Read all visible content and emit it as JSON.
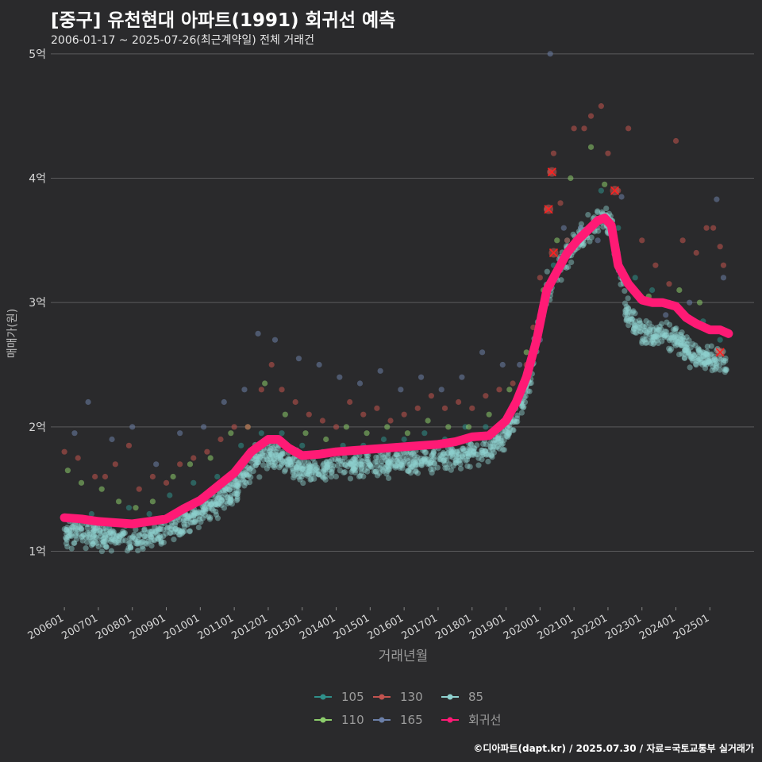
{
  "header": {
    "title": "[중구] 유천현대 아파트(1991) 회귀선 예측",
    "subtitle": "2006-01-17 ~ 2025-07-26(최근계약일) 전체 거래건"
  },
  "footer": {
    "credit": "©디아파트(dapt.kr) / 2025.07.30 / 자료=국토교통부 실거래가"
  },
  "colors": {
    "background": "#2a2a2c",
    "grid": "#5a5a5c",
    "s105": "#2f8f8a",
    "s110": "#8ccc6c",
    "s130": "#c2534f",
    "s165": "#6b7fa8",
    "s85": "#8fd1cf",
    "regression": "#ff1a75"
  },
  "chart_data": {
    "type": "scatter",
    "title": "[중구] 유천현대 아파트(1991) 회귀선 예측",
    "subtitle": "2006-01-17 ~ 2025-07-26(최근계약일) 전체 거래건",
    "xlabel": "거래년월",
    "ylabel": "매매가(원)",
    "x_unit": "year (decimal)",
    "y_unit": "억",
    "xlim": [
      2005.6,
      2026.3
    ],
    "ylim": [
      0.55,
      5.05
    ],
    "grid": true,
    "legend_position": "bottom",
    "x_ticks": [
      {
        "value": 2006.0,
        "label": "200601"
      },
      {
        "value": 2007.0,
        "label": "200701"
      },
      {
        "value": 2008.0,
        "label": "200801"
      },
      {
        "value": 2009.0,
        "label": "200901"
      },
      {
        "value": 2010.0,
        "label": "201001"
      },
      {
        "value": 2011.0,
        "label": "201101"
      },
      {
        "value": 2012.0,
        "label": "201201"
      },
      {
        "value": 2013.0,
        "label": "201301"
      },
      {
        "value": 2014.0,
        "label": "201401"
      },
      {
        "value": 2015.0,
        "label": "201501"
      },
      {
        "value": 2016.0,
        "label": "201601"
      },
      {
        "value": 2017.0,
        "label": "201701"
      },
      {
        "value": 2018.0,
        "label": "201801"
      },
      {
        "value": 2019.0,
        "label": "201901"
      },
      {
        "value": 2020.0,
        "label": "202001"
      },
      {
        "value": 2021.0,
        "label": "202101"
      },
      {
        "value": 2022.0,
        "label": "202201"
      },
      {
        "value": 2023.0,
        "label": "202301"
      },
      {
        "value": 2024.0,
        "label": "202401"
      },
      {
        "value": 2025.0,
        "label": "202501"
      }
    ],
    "y_ticks": [
      {
        "value": 1,
        "label": "1억"
      },
      {
        "value": 2,
        "label": "2억"
      },
      {
        "value": 3,
        "label": "3억"
      },
      {
        "value": 4,
        "label": "4억"
      },
      {
        "value": 5,
        "label": "5억"
      }
    ],
    "series": [
      {
        "name": "105",
        "kind": "scatter",
        "color": "#2f8f8a",
        "points": [
          [
            2006.2,
            1.25
          ],
          [
            2006.8,
            1.3
          ],
          [
            2007.3,
            1.2
          ],
          [
            2007.9,
            1.35
          ],
          [
            2008.5,
            1.3
          ],
          [
            2009.1,
            1.45
          ],
          [
            2009.8,
            1.55
          ],
          [
            2010.5,
            1.6
          ],
          [
            2011.2,
            1.85
          ],
          [
            2011.8,
            1.95
          ],
          [
            2012.4,
            1.95
          ],
          [
            2013.0,
            1.85
          ],
          [
            2013.6,
            1.8
          ],
          [
            2014.2,
            1.85
          ],
          [
            2014.8,
            1.85
          ],
          [
            2015.4,
            1.9
          ],
          [
            2016.0,
            1.9
          ],
          [
            2016.6,
            1.95
          ],
          [
            2017.2,
            1.9
          ],
          [
            2017.8,
            2.0
          ],
          [
            2018.4,
            2.0
          ],
          [
            2019.0,
            2.05
          ],
          [
            2019.5,
            2.3
          ],
          [
            2020.0,
            2.9
          ],
          [
            2020.4,
            3.3
          ],
          [
            2020.8,
            3.5
          ],
          [
            2021.3,
            3.55
          ],
          [
            2021.8,
            3.9
          ],
          [
            2022.3,
            3.6
          ],
          [
            2022.8,
            3.2
          ],
          [
            2023.3,
            3.1
          ],
          [
            2023.8,
            3.0
          ],
          [
            2024.3,
            2.9
          ],
          [
            2024.8,
            2.85
          ],
          [
            2025.3,
            2.7
          ]
        ]
      },
      {
        "name": "110",
        "kind": "scatter",
        "color": "#8ccc6c",
        "points": [
          [
            2006.1,
            1.65
          ],
          [
            2006.5,
            1.55
          ],
          [
            2007.1,
            1.5
          ],
          [
            2007.6,
            1.4
          ],
          [
            2008.1,
            1.35
          ],
          [
            2008.6,
            1.4
          ],
          [
            2009.2,
            1.6
          ],
          [
            2009.7,
            1.7
          ],
          [
            2010.3,
            1.75
          ],
          [
            2010.9,
            1.95
          ],
          [
            2011.4,
            2.0
          ],
          [
            2011.9,
            2.35
          ],
          [
            2012.5,
            2.1
          ],
          [
            2013.1,
            1.95
          ],
          [
            2013.7,
            1.9
          ],
          [
            2014.3,
            2.0
          ],
          [
            2014.9,
            1.95
          ],
          [
            2015.5,
            2.0
          ],
          [
            2016.1,
            1.95
          ],
          [
            2016.7,
            2.05
          ],
          [
            2017.3,
            2.0
          ],
          [
            2017.9,
            2.0
          ],
          [
            2018.5,
            2.1
          ],
          [
            2019.1,
            2.3
          ],
          [
            2019.6,
            2.6
          ],
          [
            2020.1,
            3.1
          ],
          [
            2020.5,
            3.5
          ],
          [
            2020.9,
            4.0
          ],
          [
            2021.5,
            4.25
          ],
          [
            2021.9,
            3.95
          ],
          [
            2023.2,
            3.05
          ],
          [
            2024.1,
            3.1
          ],
          [
            2024.7,
            3.0
          ]
        ]
      },
      {
        "name": "130",
        "kind": "scatter",
        "color": "#c2534f",
        "points": [
          [
            2006.0,
            1.8
          ],
          [
            2006.4,
            1.75
          ],
          [
            2006.9,
            1.6
          ],
          [
            2007.2,
            1.6
          ],
          [
            2007.5,
            1.7
          ],
          [
            2007.9,
            1.85
          ],
          [
            2008.2,
            1.5
          ],
          [
            2008.6,
            1.6
          ],
          [
            2009.0,
            1.55
          ],
          [
            2009.4,
            1.7
          ],
          [
            2009.8,
            1.75
          ],
          [
            2010.2,
            1.8
          ],
          [
            2010.6,
            1.9
          ],
          [
            2011.0,
            2.0
          ],
          [
            2011.4,
            2.0
          ],
          [
            2011.8,
            2.3
          ],
          [
            2012.1,
            2.5
          ],
          [
            2012.4,
            2.3
          ],
          [
            2012.8,
            2.2
          ],
          [
            2013.2,
            2.1
          ],
          [
            2013.6,
            2.05
          ],
          [
            2014.0,
            2.0
          ],
          [
            2014.4,
            2.2
          ],
          [
            2014.8,
            2.1
          ],
          [
            2015.2,
            2.15
          ],
          [
            2015.6,
            2.05
          ],
          [
            2016.0,
            2.1
          ],
          [
            2016.4,
            2.15
          ],
          [
            2016.8,
            2.25
          ],
          [
            2017.2,
            2.15
          ],
          [
            2017.6,
            2.2
          ],
          [
            2018.0,
            2.15
          ],
          [
            2018.4,
            2.25
          ],
          [
            2018.8,
            2.3
          ],
          [
            2019.2,
            2.35
          ],
          [
            2019.6,
            2.5
          ],
          [
            2019.8,
            2.8
          ],
          [
            2020.0,
            3.2
          ],
          [
            2020.2,
            3.75
          ],
          [
            2020.3,
            4.05
          ],
          [
            2020.4,
            4.2
          ],
          [
            2020.6,
            3.8
          ],
          [
            2020.8,
            3.5
          ],
          [
            2021.0,
            4.4
          ],
          [
            2021.3,
            4.4
          ],
          [
            2021.5,
            4.5
          ],
          [
            2021.8,
            4.58
          ],
          [
            2022.0,
            4.2
          ],
          [
            2022.3,
            3.9
          ],
          [
            2022.6,
            4.4
          ],
          [
            2023.0,
            3.5
          ],
          [
            2023.4,
            3.3
          ],
          [
            2023.8,
            3.15
          ],
          [
            2024.0,
            4.3
          ],
          [
            2024.2,
            3.5
          ],
          [
            2024.6,
            3.4
          ],
          [
            2024.9,
            3.6
          ],
          [
            2025.1,
            3.6
          ],
          [
            2025.3,
            3.45
          ],
          [
            2025.4,
            3.3
          ]
        ]
      },
      {
        "name": "165",
        "kind": "scatter",
        "color": "#6b7fa8",
        "points": [
          [
            2006.3,
            1.95
          ],
          [
            2006.7,
            2.2
          ],
          [
            2007.4,
            1.9
          ],
          [
            2008.0,
            2.0
          ],
          [
            2008.7,
            1.7
          ],
          [
            2009.4,
            1.95
          ],
          [
            2010.1,
            2.0
          ],
          [
            2010.7,
            2.2
          ],
          [
            2011.3,
            2.3
          ],
          [
            2011.7,
            2.75
          ],
          [
            2012.2,
            2.7
          ],
          [
            2012.9,
            2.55
          ],
          [
            2013.5,
            2.5
          ],
          [
            2014.1,
            2.4
          ],
          [
            2014.7,
            2.35
          ],
          [
            2015.3,
            2.45
          ],
          [
            2015.9,
            2.3
          ],
          [
            2016.5,
            2.4
          ],
          [
            2017.1,
            2.3
          ],
          [
            2017.7,
            2.4
          ],
          [
            2018.3,
            2.6
          ],
          [
            2018.9,
            2.5
          ],
          [
            2019.4,
            2.5
          ],
          [
            2020.0,
            2.7
          ],
          [
            2020.3,
            5.0
          ],
          [
            2020.7,
            3.6
          ],
          [
            2021.2,
            3.6
          ],
          [
            2021.7,
            3.5
          ],
          [
            2022.4,
            3.85
          ],
          [
            2023.1,
            3.0
          ],
          [
            2023.7,
            2.9
          ],
          [
            2024.4,
            3.0
          ],
          [
            2025.2,
            3.83
          ],
          [
            2025.4,
            3.2
          ]
        ]
      },
      {
        "name": "85",
        "kind": "scatter",
        "color": "#8fd1cf",
        "dense": true,
        "samples": 1500
      },
      {
        "name": "회귀선",
        "kind": "line",
        "color": "#ff1a75",
        "points": [
          [
            2006.0,
            1.27
          ],
          [
            2006.5,
            1.26
          ],
          [
            2007.0,
            1.24
          ],
          [
            2007.5,
            1.23
          ],
          [
            2008.0,
            1.22
          ],
          [
            2008.5,
            1.24
          ],
          [
            2009.0,
            1.26
          ],
          [
            2009.5,
            1.34
          ],
          [
            2010.0,
            1.41
          ],
          [
            2010.5,
            1.52
          ],
          [
            2011.0,
            1.63
          ],
          [
            2011.5,
            1.8
          ],
          [
            2012.0,
            1.9
          ],
          [
            2012.3,
            1.9
          ],
          [
            2012.6,
            1.83
          ],
          [
            2013.0,
            1.77
          ],
          [
            2013.5,
            1.78
          ],
          [
            2014.0,
            1.8
          ],
          [
            2014.5,
            1.81
          ],
          [
            2015.0,
            1.82
          ],
          [
            2015.5,
            1.83
          ],
          [
            2016.0,
            1.84
          ],
          [
            2016.5,
            1.85
          ],
          [
            2017.0,
            1.86
          ],
          [
            2017.5,
            1.88
          ],
          [
            2018.0,
            1.92
          ],
          [
            2018.5,
            1.93
          ],
          [
            2019.0,
            2.05
          ],
          [
            2019.3,
            2.2
          ],
          [
            2019.6,
            2.4
          ],
          [
            2019.9,
            2.7
          ],
          [
            2020.2,
            3.1
          ],
          [
            2020.5,
            3.25
          ],
          [
            2020.8,
            3.4
          ],
          [
            2021.1,
            3.5
          ],
          [
            2021.4,
            3.58
          ],
          [
            2021.7,
            3.66
          ],
          [
            2021.9,
            3.68
          ],
          [
            2022.1,
            3.62
          ],
          [
            2022.3,
            3.3
          ],
          [
            2022.6,
            3.15
          ],
          [
            2023.0,
            3.02
          ],
          [
            2023.3,
            3.0
          ],
          [
            2023.6,
            3.0
          ],
          [
            2024.0,
            2.97
          ],
          [
            2024.3,
            2.88
          ],
          [
            2024.6,
            2.83
          ],
          [
            2025.0,
            2.78
          ],
          [
            2025.3,
            2.78
          ],
          [
            2025.55,
            2.75
          ]
        ]
      }
    ],
    "highlight_markers": [
      {
        "x": 2020.35,
        "y": 4.05,
        "label": "x"
      },
      {
        "x": 2020.25,
        "y": 3.75,
        "label": "x"
      },
      {
        "x": 2020.4,
        "y": 3.4,
        "label": "x"
      },
      {
        "x": 2022.2,
        "y": 3.9,
        "label": "x"
      },
      {
        "x": 2025.3,
        "y": 2.6,
        "label": "x"
      }
    ]
  }
}
